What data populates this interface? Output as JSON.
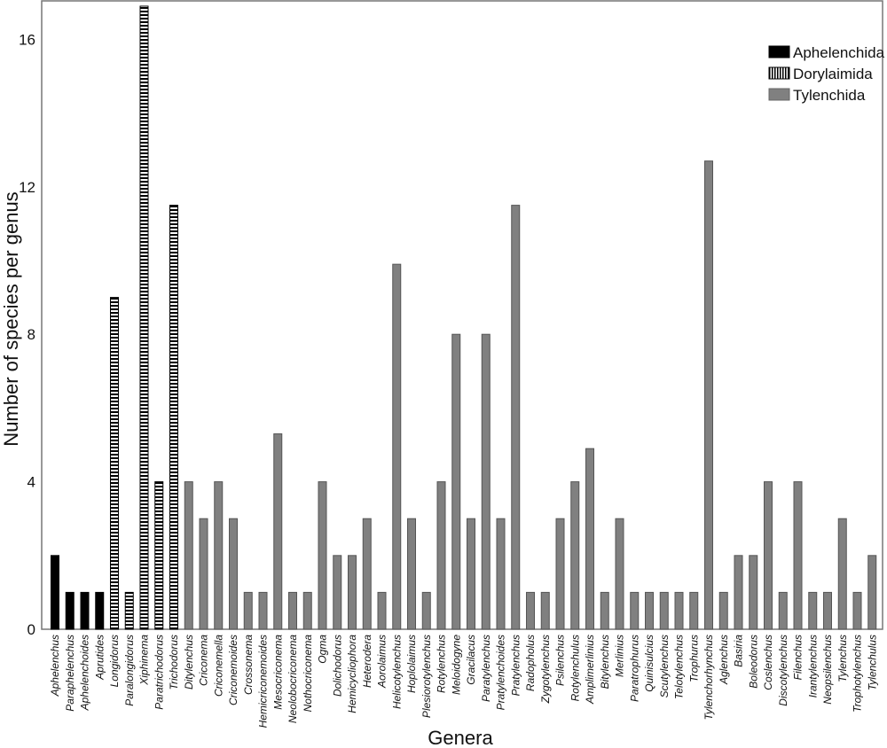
{
  "chart_data": {
    "type": "bar",
    "title": "",
    "xlabel": "Genera",
    "ylabel": "Number of species per genus",
    "ylim": [
      0,
      17
    ],
    "yticks": [
      0,
      4,
      8,
      12,
      16
    ],
    "grid": false,
    "legend_position": "top-right",
    "legend": [
      {
        "name": "Aphelenchida",
        "pattern": "solid",
        "color": "#000000"
      },
      {
        "name": "Dorylaimida",
        "pattern": "stripes",
        "color": "#000000"
      },
      {
        "name": "Tylenchida",
        "pattern": "solid",
        "color": "#808080"
      }
    ],
    "categories": [
      "Aphelenchus",
      "Paraphelenchus",
      "Aphelenchoides",
      "Aprutides",
      "Longidorus",
      "Paralongidorus",
      "Xiphinema",
      "Paratrichodorus",
      "Trichodorus",
      "Ditylenchus",
      "Criconema",
      "Criconemella",
      "Criconemoides",
      "Crossonema",
      "Hemicriconemoides",
      "Mesocriconema",
      "Neolobocriconema",
      "Nothocriconema",
      "Ogma",
      "Dolichodorus",
      "Hemicycliophora",
      "Heterodera",
      "Aorolaimus",
      "Helicotylenchus",
      "Hoplolaimus",
      "Plesiorotylenchus",
      "Rotylenchus",
      "Meloidogyne",
      "Gracilacus",
      "Paratylenchus",
      "Pratylenchoides",
      "Pratylenchus",
      "Radopholus",
      "Zygotylenchus",
      "Psilenchus",
      "Rotylenchulus",
      "Amplimerlinius",
      "Bitylenchus",
      "Merlinius",
      "Paratrophurus",
      "Quinisulcius",
      "Scutylenchus",
      "Telotylenchus",
      "Trophurus",
      "Tylenchorhynchus",
      "Aglenchus",
      "Basiria",
      "Boleodorus",
      "Coslenchus",
      "Discotylenchus",
      "Filenchus",
      "Irantylenchus",
      "Neopsilenchus",
      "Tylenchus",
      "Trophotylenchus",
      "Tylenchulus"
    ],
    "values": [
      2,
      1,
      1,
      1,
      9,
      1,
      16.9,
      4,
      11.5,
      4,
      3,
      4,
      3,
      1,
      1,
      5.3,
      1,
      1,
      4,
      2,
      2,
      3,
      1,
      9.9,
      3,
      1,
      4,
      8,
      3,
      8,
      3,
      11.5,
      1,
      1,
      3,
      4,
      4.9,
      1,
      3,
      1,
      1,
      1,
      1,
      1,
      12.7,
      1,
      2,
      2,
      4,
      1,
      4,
      1,
      1,
      3,
      1,
      2
    ],
    "groups": [
      "Aphelenchida",
      "Aphelenchida",
      "Aphelenchida",
      "Aphelenchida",
      "Dorylaimida",
      "Dorylaimida",
      "Dorylaimida",
      "Dorylaimida",
      "Dorylaimida",
      "Tylenchida",
      "Tylenchida",
      "Tylenchida",
      "Tylenchida",
      "Tylenchida",
      "Tylenchida",
      "Tylenchida",
      "Tylenchida",
      "Tylenchida",
      "Tylenchida",
      "Tylenchida",
      "Tylenchida",
      "Tylenchida",
      "Tylenchida",
      "Tylenchida",
      "Tylenchida",
      "Tylenchida",
      "Tylenchida",
      "Tylenchida",
      "Tylenchida",
      "Tylenchida",
      "Tylenchida",
      "Tylenchida",
      "Tylenchida",
      "Tylenchida",
      "Tylenchida",
      "Tylenchida",
      "Tylenchida",
      "Tylenchida",
      "Tylenchida",
      "Tylenchida",
      "Tylenchida",
      "Tylenchida",
      "Tylenchida",
      "Tylenchida",
      "Tylenchida",
      "Tylenchida",
      "Tylenchida",
      "Tylenchida",
      "Tylenchida",
      "Tylenchida",
      "Tylenchida",
      "Tylenchida",
      "Tylenchida",
      "Tylenchida",
      "Tylenchida",
      "Tylenchida"
    ]
  }
}
